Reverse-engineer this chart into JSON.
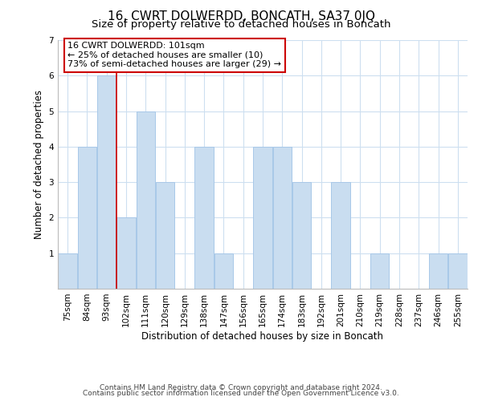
{
  "title": "16, CWRT DOLWERDD, BONCATH, SA37 0JQ",
  "subtitle": "Size of property relative to detached houses in Boncath",
  "xlabel": "Distribution of detached houses by size in Boncath",
  "ylabel": "Number of detached properties",
  "bin_labels": [
    "75sqm",
    "84sqm",
    "93sqm",
    "102sqm",
    "111sqm",
    "120sqm",
    "129sqm",
    "138sqm",
    "147sqm",
    "156sqm",
    "165sqm",
    "174sqm",
    "183sqm",
    "192sqm",
    "201sqm",
    "210sqm",
    "219sqm",
    "228sqm",
    "237sqm",
    "246sqm",
    "255sqm"
  ],
  "bar_values": [
    1,
    4,
    6,
    2,
    5,
    3,
    0,
    4,
    1,
    0,
    4,
    4,
    3,
    0,
    3,
    0,
    1,
    0,
    0,
    1,
    1
  ],
  "bar_color": "#c9ddf0",
  "bar_edge_color": "#a8c8e8",
  "subject_bin_index": 3,
  "subject_line_color": "#cc0000",
  "annotation_line1": "16 CWRT DOLWERDD: 101sqm",
  "annotation_line2": "← 25% of detached houses are smaller (10)",
  "annotation_line3": "73% of semi-detached houses are larger (29) →",
  "annotation_box_edge_color": "#cc0000",
  "ylim": [
    0,
    7
  ],
  "yticks": [
    0,
    1,
    2,
    3,
    4,
    5,
    6,
    7
  ],
  "footer_line1": "Contains HM Land Registry data © Crown copyright and database right 2024.",
  "footer_line2": "Contains public sector information licensed under the Open Government Licence v3.0.",
  "bg_color": "#ffffff",
  "plot_bg_color": "#ffffff",
  "grid_color": "#cddff0",
  "title_fontsize": 11,
  "subtitle_fontsize": 9.5,
  "axis_label_fontsize": 8.5,
  "tick_fontsize": 7.5,
  "annotation_fontsize": 8,
  "footer_fontsize": 6.5
}
